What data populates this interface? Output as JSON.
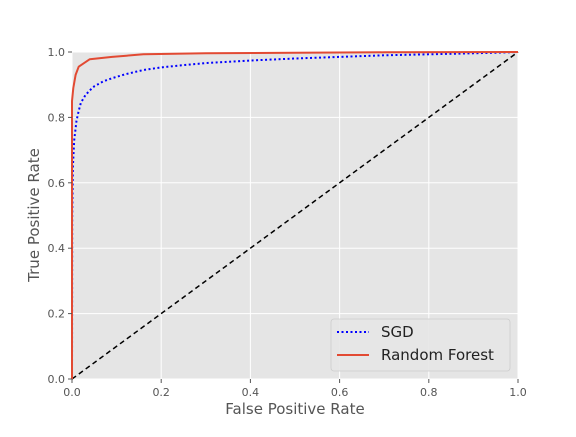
{
  "chart_data": {
    "type": "line",
    "xlabel": "False Positive Rate",
    "ylabel": "True Positive Rate",
    "xlim": [
      0,
      1
    ],
    "ylim": [
      0,
      1
    ],
    "xticks": [
      "0.0",
      "0.2",
      "0.4",
      "0.6",
      "0.8",
      "1.0"
    ],
    "yticks": [
      "0.0",
      "0.2",
      "0.4",
      "0.6",
      "0.8",
      "1.0"
    ],
    "grid": true,
    "legend_position": "lower-right",
    "series": [
      {
        "name": "SGD",
        "color": "#0000ff",
        "style": "dotted",
        "x": [
          0,
          0.0005,
          0.002,
          0.005,
          0.01,
          0.015,
          0.02,
          0.03,
          0.04,
          0.05,
          0.07,
          0.09,
          0.12,
          0.16,
          0.2,
          0.25,
          0.3,
          0.4,
          0.5,
          0.6,
          0.7,
          0.8,
          0.9,
          0.95,
          1.0
        ],
        "y": [
          0,
          0.5,
          0.65,
          0.73,
          0.79,
          0.82,
          0.845,
          0.868,
          0.883,
          0.895,
          0.91,
          0.92,
          0.932,
          0.945,
          0.953,
          0.96,
          0.966,
          0.974,
          0.98,
          0.985,
          0.99,
          0.993,
          0.996,
          0.998,
          1.0
        ]
      },
      {
        "name": "Random Forest",
        "color": "#e24a33",
        "style": "solid",
        "x": [
          0,
          0.0,
          0.003,
          0.008,
          0.015,
          0.04,
          0.09,
          0.16,
          0.3,
          0.5,
          0.7,
          1.0
        ],
        "y": [
          0,
          0.85,
          0.89,
          0.93,
          0.955,
          0.978,
          0.985,
          0.993,
          0.996,
          0.998,
          0.999,
          1.0
        ]
      },
      {
        "name": "",
        "color": "#000000",
        "style": "dashed",
        "x": [
          0,
          1
        ],
        "y": [
          0,
          1
        ]
      }
    ]
  }
}
